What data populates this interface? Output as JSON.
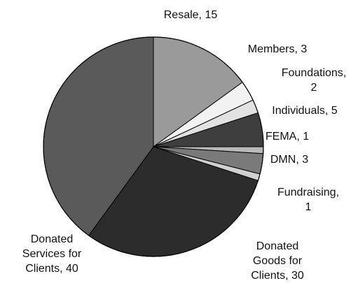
{
  "chart_data": {
    "type": "pie",
    "title": "",
    "legend": "none",
    "start_angle_deg": 0,
    "direction": "clockwise",
    "slices": [
      {
        "name": "Resale",
        "value": 15,
        "color": "#9a9a9a",
        "label_lines": [
          "Resale, 15"
        ]
      },
      {
        "name": "Members",
        "value": 3,
        "color": "#f2f2f2",
        "label_lines": [
          "Members, 3"
        ]
      },
      {
        "name": "Foundations",
        "value": 2,
        "color": "#e2e2e2",
        "label_lines": [
          "Foundations,",
          "2"
        ]
      },
      {
        "name": "Individuals",
        "value": 5,
        "color": "#3e3e3e",
        "label_lines": [
          "Individuals, 5"
        ]
      },
      {
        "name": "FEMA",
        "value": 1,
        "color": "#b9b9b9",
        "label_lines": [
          "FEMA, 1"
        ]
      },
      {
        "name": "DMN",
        "value": 3,
        "color": "#7a7a7a",
        "label_lines": [
          "DMN, 3"
        ]
      },
      {
        "name": "Fundraising",
        "value": 1,
        "color": "#d0d0d0",
        "label_lines": [
          "Fundraising,",
          "1"
        ]
      },
      {
        "name": "Donated Goods for Clients",
        "value": 30,
        "color": "#2c2c2c",
        "label_lines": [
          "Donated",
          "Goods for",
          "Clients, 30"
        ]
      },
      {
        "name": "Donated Services for Clients",
        "value": 40,
        "color": "#5a5a5a",
        "label_lines": [
          "Donated",
          "Services for",
          "Clients, 40"
        ]
      }
    ]
  }
}
